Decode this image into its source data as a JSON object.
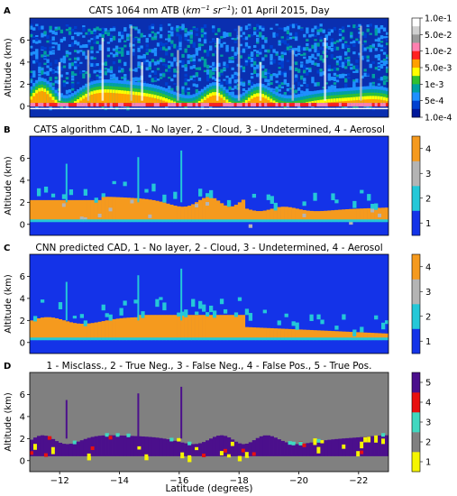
{
  "chart_data": [
    {
      "type": "heatmap",
      "panel_letter": "A",
      "title": "CATS 1064 nm ATB (km⁻¹ sr⁻¹); 01 April 2015, Day",
      "title_prefix": "CATS 1064 nm ATB (",
      "title_unit_1": "km",
      "title_unit_1_sup": "−1",
      "title_unit_2": "sr",
      "title_unit_2_sup": "−1",
      "title_suffix": "); 01 April 2015, Day",
      "ylabel": "Altitude (km)",
      "y_ticks": [
        0,
        2,
        4,
        6
      ],
      "ylim": [
        -1,
        8
      ],
      "xlim": [
        -11,
        -23
      ],
      "colorbar": {
        "scale": "log",
        "labels": [
          "1.0e-1",
          "5.0e-2",
          "1.0e-2",
          "5.0e-3",
          "1e-3",
          "5e-4",
          "1.0e-4"
        ],
        "colors": [
          "#ffffff",
          "#d0d0d0",
          "#9a9a9a",
          "#ff80b0",
          "#ff2020",
          "#ffa000",
          "#ffff00",
          "#30c030",
          "#00a0a0",
          "#1e90ff",
          "#0040d0",
          "#00189a"
        ]
      }
    },
    {
      "type": "heatmap",
      "panel_letter": "B",
      "title": "CATS algorithm CAD, 1 - No layer, 2 - Cloud, 3 - Undetermined, 4 - Aerosol",
      "ylabel": "Altitude (km)",
      "y_ticks": [
        0,
        2,
        4,
        6
      ],
      "ylim": [
        -1,
        8
      ],
      "classes": [
        {
          "label": "1",
          "color": "#1433e8"
        },
        {
          "label": "2",
          "color": "#24c8d8"
        },
        {
          "label": "3",
          "color": "#b4b4b4"
        },
        {
          "label": "4",
          "color": "#f59a1e"
        }
      ]
    },
    {
      "type": "heatmap",
      "panel_letter": "C",
      "title": "CNN predicted CAD, 1 - No layer, 2 - Cloud, 3 - Undetermined, 4 - Aerosol",
      "ylabel": "Altitude (km)",
      "y_ticks": [
        0,
        2,
        4,
        6
      ],
      "ylim": [
        -1,
        8
      ],
      "classes": [
        {
          "label": "1",
          "color": "#1433e8"
        },
        {
          "label": "2",
          "color": "#24c8d8"
        },
        {
          "label": "3",
          "color": "#b4b4b4"
        },
        {
          "label": "4",
          "color": "#f59a1e"
        }
      ]
    },
    {
      "type": "heatmap",
      "panel_letter": "D",
      "title": "1 - Misclass., 2 - True Neg., 3 - False Neg., 4 - False Pos., 5 - True Pos.",
      "ylabel": "Altitude (km)",
      "xlabel": "Latitude (degrees)",
      "y_ticks": [
        0,
        2,
        4,
        6
      ],
      "x_ticks": [
        -12,
        -14,
        -16,
        -18,
        -20,
        -22
      ],
      "ylim": [
        -1,
        8
      ],
      "xlim": [
        -11,
        -23
      ],
      "classes": [
        {
          "label": "1",
          "color": "#f5f500"
        },
        {
          "label": "2",
          "color": "#808080"
        },
        {
          "label": "3",
          "color": "#40d8c0"
        },
        {
          "label": "4",
          "color": "#e81010"
        },
        {
          "label": "5",
          "color": "#4b0f8c"
        }
      ]
    }
  ]
}
